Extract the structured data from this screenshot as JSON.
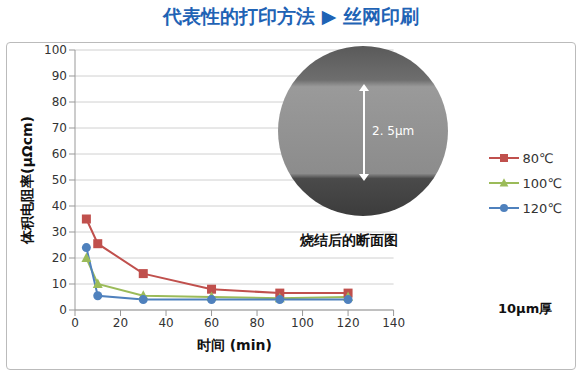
{
  "chart_data": {
    "type": "line",
    "title": "代表性的打印方法 ▶ 丝网印刷",
    "x_label": "时间 (min)",
    "y_label": "体积电阻率(μΩcm)",
    "x": [
      5,
      10,
      30,
      60,
      90,
      120
    ],
    "series": [
      {
        "name": "80℃",
        "color": "#c0504d",
        "marker": "square",
        "values": [
          35,
          25.5,
          14,
          8,
          6.5,
          6.5
        ]
      },
      {
        "name": "100℃",
        "color": "#9bbb59",
        "marker": "triangle",
        "values": [
          20,
          10,
          5.5,
          5,
          4.5,
          5
        ]
      },
      {
        "name": "120℃",
        "color": "#4f81bd",
        "marker": "circle",
        "values": [
          24,
          5.5,
          4,
          4,
          4,
          4
        ]
      }
    ],
    "xlim": [
      0,
      140
    ],
    "xticks": [
      0,
      20,
      40,
      60,
      80,
      100,
      120,
      140
    ],
    "ylim": [
      0,
      100
    ],
    "yticks": [
      0,
      10,
      20,
      30,
      40,
      50,
      60,
      70,
      80,
      90,
      100
    ],
    "grid": true,
    "legend": "right",
    "annotations": [
      "烧结后的断面图",
      "2. 5μm",
      "10μm厚"
    ]
  }
}
